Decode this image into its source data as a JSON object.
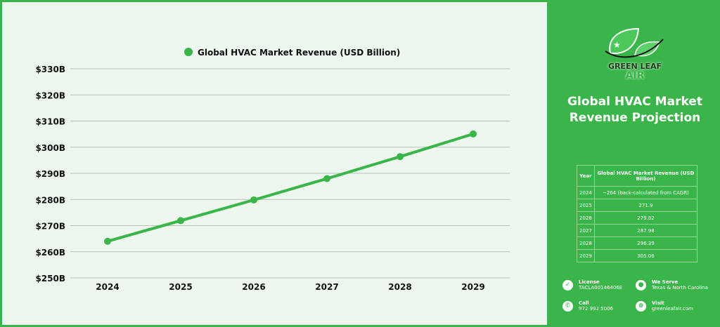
{
  "chart_data": {
    "type": "line",
    "title": "Global HVAC Market Revenue (USD Billion)",
    "legend": "Global HVAC Market Revenue (USD Billion)",
    "legend_position": "top",
    "categories": [
      "2024",
      "2025",
      "2026",
      "2027",
      "2028",
      "2029"
    ],
    "series": [
      {
        "name": "Global HVAC Market Revenue (USD Billion)",
        "values": [
          264,
          271.9,
          279.82,
          287.98,
          296.39,
          305.06
        ]
      }
    ],
    "yticks": [
      250,
      260,
      270,
      280,
      290,
      300,
      310,
      320,
      330
    ],
    "ytick_labels": [
      "$250B",
      "$260B",
      "$270B",
      "$280B",
      "$290B",
      "$300B",
      "$310B",
      "$320B",
      "$330B"
    ],
    "ylim": [
      250,
      330
    ],
    "grid": true,
    "color": "#3ab54a"
  },
  "brand": {
    "logo_line1": "GREEN LEAF",
    "logo_line2": "AIR"
  },
  "side_title": "Global HVAC Market Revenue Projection",
  "table": {
    "headers": [
      "Year",
      "Global HVAC Market Revenue (USD Billion)"
    ],
    "rows": [
      [
        "2024",
        "~264 (back-calculated from CAGR)"
      ],
      [
        "2025",
        "271.9"
      ],
      [
        "2026",
        "279.82"
      ],
      [
        "2027",
        "287.98"
      ],
      [
        "2028",
        "296.39"
      ],
      [
        "2029",
        "305.06"
      ]
    ]
  },
  "contact": {
    "license_label": "License",
    "license_value": "TACLA00146406E",
    "serve_label": "We Serve",
    "serve_value": "Texas & North Carolina",
    "call_label": "Call",
    "call_value": "972 992 5006",
    "visit_label": "Visit",
    "visit_value": "greenleafair.com"
  }
}
